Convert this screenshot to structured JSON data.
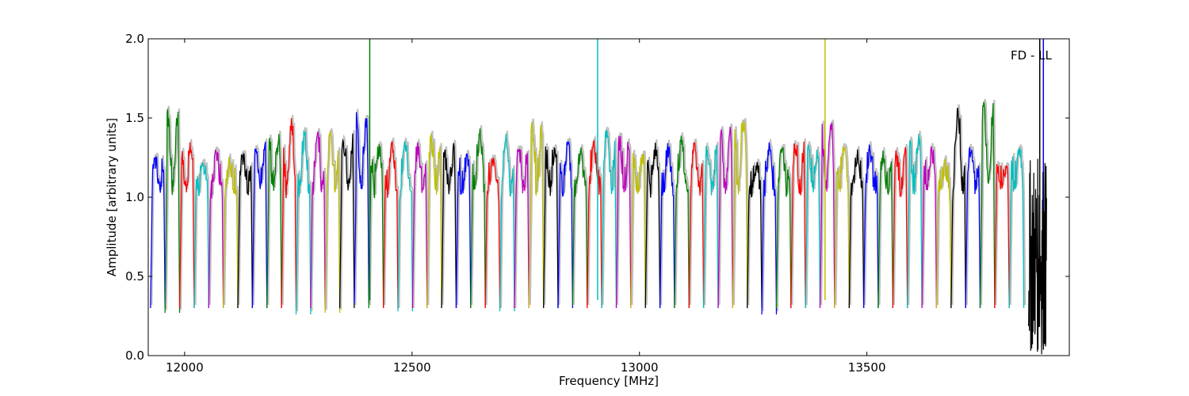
{
  "chart_data": {
    "type": "line",
    "xlabel": "Frequency [MHz]",
    "ylabel": "Amplitude [arbitrary units]",
    "annotation": "FD - LL",
    "xlim": [
      11920,
      13945
    ],
    "ylim": [
      0.0,
      2.0
    ],
    "xticks": [
      12000,
      12500,
      13000,
      13500
    ],
    "yticks": [
      0.0,
      0.5,
      1.0,
      1.5,
      2.0
    ],
    "xtick_labels": [
      "12000",
      "12500",
      "13000",
      "13500"
    ],
    "ytick_labels": [
      "0.0",
      "0.5",
      "1.0",
      "1.5",
      "2.0"
    ],
    "grid": false,
    "color_cycle": [
      "#0000ff",
      "#008000",
      "#ff0000",
      "#00bfbf",
      "#bf00bf",
      "#bfbf00",
      "#000000"
    ],
    "reference_color": "#c0c0c0",
    "band_start": 11925,
    "band_width": 32,
    "band_count": 60,
    "band_peaks": [
      1.25,
      1.5,
      1.3,
      1.2,
      1.28,
      1.22,
      1.27,
      1.3,
      1.35,
      1.45,
      1.4,
      1.38,
      1.38,
      1.35,
      1.5,
      1.32,
      1.35,
      1.33,
      1.32,
      1.35,
      1.3,
      1.25,
      1.4,
      1.22,
      1.4,
      1.3,
      1.43,
      1.3,
      1.35,
      1.28,
      1.35,
      1.4,
      1.35,
      1.25,
      1.3,
      1.3,
      1.35,
      1.3,
      1.3,
      1.4,
      1.48,
      1.2,
      1.3,
      1.3,
      1.33,
      1.3,
      1.46,
      1.3,
      1.25,
      1.3,
      1.25,
      1.27,
      1.4,
      1.3,
      1.2,
      1.56,
      1.3,
      1.6,
      1.2,
      1.3
    ],
    "band_dips": [
      0.3,
      0.27,
      0.3,
      0.3,
      0.3,
      0.3,
      0.3,
      0.3,
      0.3,
      0.3,
      0.26,
      0.3,
      0.27,
      0.3,
      0.33,
      0.3,
      0.3,
      0.28,
      0.3,
      0.3,
      0.3,
      0.3,
      0.3,
      0.3,
      0.28,
      0.3,
      0.3,
      0.3,
      0.3,
      0.32,
      0.3,
      0.3,
      0.3,
      0.3,
      0.3,
      0.3,
      0.3,
      0.3,
      0.3,
      0.3,
      0.3,
      0.3,
      0.26,
      0.3,
      0.3,
      0.3,
      0.3,
      0.3,
      0.3,
      0.3,
      0.3,
      0.3,
      0.3,
      0.3,
      0.3,
      0.3,
      0.3,
      0.3,
      0.3,
      0.3
    ],
    "spikes": [
      {
        "x": 12407,
        "ymax": 2.0,
        "color": "#008000"
      },
      {
        "x": 12908,
        "ymax": 2.0,
        "color": "#00bfbf"
      },
      {
        "x": 13408,
        "ymax": 2.0,
        "color": "#bfbf00"
      },
      {
        "x": 13880,
        "ymax": 2.0,
        "color": "#000000"
      },
      {
        "x": 13888,
        "ymax": 2.0,
        "color": "#0000ff"
      }
    ],
    "noise_region": {
      "x": [
        13855,
        13895
      ],
      "ymin": 0.0,
      "ymax": 1.25,
      "color": "#000000"
    }
  }
}
